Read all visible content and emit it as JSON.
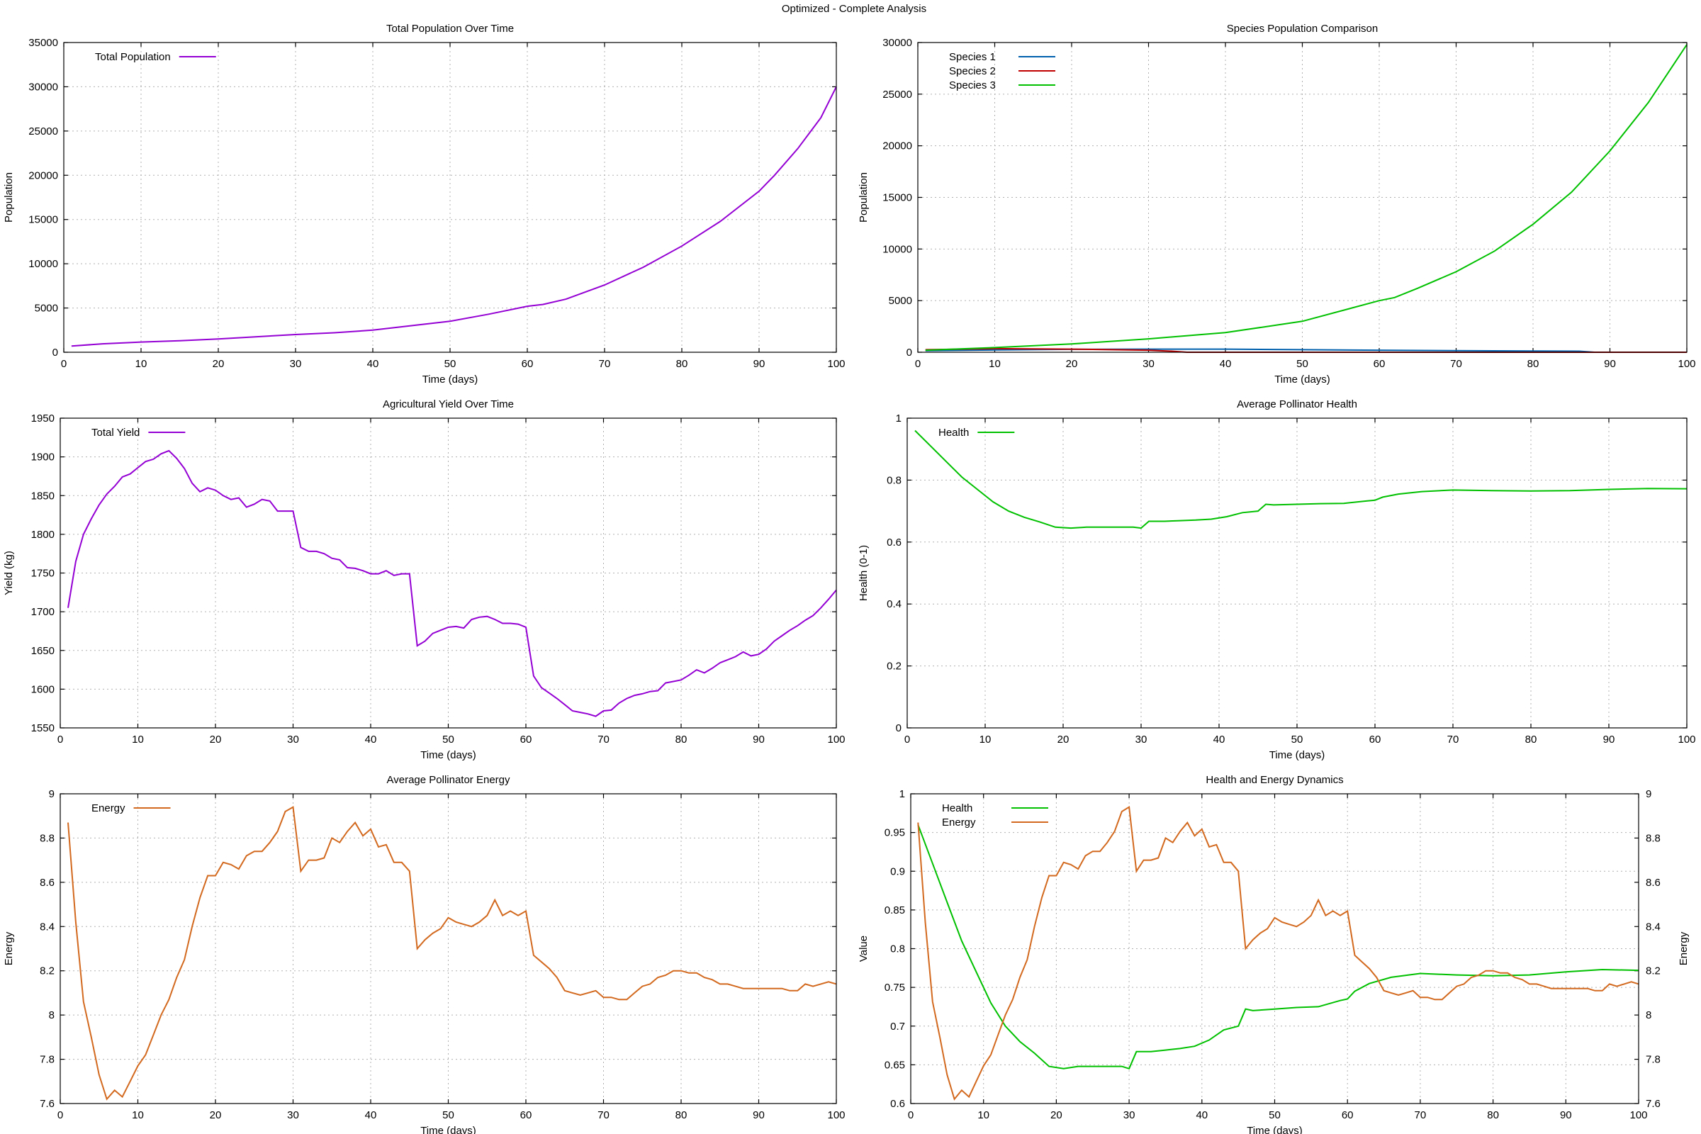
{
  "figure": {
    "suptitle": "Optimized - Complete Analysis"
  },
  "chart_data": [
    {
      "id": "p1",
      "type": "line",
      "title": "Total Population Over Time",
      "xlabel": "Time (days)",
      "ylabel": "Population",
      "xlim": [
        0,
        100
      ],
      "ylim": [
        0,
        35000
      ],
      "xticks": [
        0,
        10,
        20,
        30,
        40,
        50,
        60,
        70,
        80,
        90,
        100
      ],
      "yticks": [
        0,
        5000,
        10000,
        15000,
        20000,
        25000,
        30000,
        35000
      ],
      "grid": true,
      "legend_position": "top-left",
      "series": [
        {
          "name": "Total Population",
          "color": "#9400d3",
          "x": [
            1,
            5,
            10,
            15,
            20,
            25,
            30,
            35,
            40,
            45,
            50,
            55,
            60,
            62,
            65,
            70,
            75,
            80,
            85,
            90,
            92,
            95,
            98,
            100
          ],
          "y": [
            700,
            950,
            1150,
            1300,
            1500,
            1750,
            2000,
            2200,
            2500,
            3000,
            3500,
            4300,
            5200,
            5400,
            6000,
            7600,
            9600,
            12000,
            14800,
            18200,
            20000,
            23000,
            26500,
            30000
          ]
        }
      ]
    },
    {
      "id": "p2",
      "type": "line",
      "title": "Species Population Comparison",
      "xlabel": "Time (days)",
      "ylabel": "Population",
      "xlim": [
        0,
        100
      ],
      "ylim": [
        0,
        30000
      ],
      "xticks": [
        0,
        10,
        20,
        30,
        40,
        50,
        60,
        70,
        80,
        90,
        100
      ],
      "yticks": [
        0,
        5000,
        10000,
        15000,
        20000,
        25000,
        30000
      ],
      "grid": true,
      "legend_position": "top-left",
      "series": [
        {
          "name": "Species 1",
          "color": "#0060ad",
          "x": [
            1,
            10,
            20,
            30,
            40,
            50,
            60,
            70,
            80,
            86,
            88,
            100
          ],
          "y": [
            150,
            220,
            280,
            300,
            300,
            250,
            200,
            160,
            120,
            100,
            0,
            0
          ]
        },
        {
          "name": "Species 2",
          "color": "#c00000",
          "x": [
            1,
            10,
            20,
            30,
            33,
            35,
            100
          ],
          "y": [
            250,
            350,
            300,
            200,
            100,
            0,
            0
          ]
        },
        {
          "name": "Species 3",
          "color": "#00c000",
          "x": [
            1,
            10,
            20,
            30,
            40,
            50,
            60,
            62,
            65,
            70,
            75,
            80,
            85,
            90,
            95,
            100
          ],
          "y": [
            200,
            450,
            800,
            1300,
            1900,
            3000,
            5000,
            5300,
            6200,
            7800,
            9800,
            12400,
            15500,
            19500,
            24200,
            29800
          ]
        }
      ]
    },
    {
      "id": "p3",
      "type": "line",
      "title": "Agricultural Yield Over Time",
      "xlabel": "Time (days)",
      "ylabel": "Yield (kg)",
      "xlim": [
        0,
        100
      ],
      "ylim": [
        1550,
        1950
      ],
      "xticks": [
        0,
        10,
        20,
        30,
        40,
        50,
        60,
        70,
        80,
        90,
        100
      ],
      "yticks": [
        1550,
        1600,
        1650,
        1700,
        1750,
        1800,
        1850,
        1900,
        1950
      ],
      "grid": true,
      "legend_position": "top-left",
      "series": [
        {
          "name": "Total Yield",
          "color": "#9400d3",
          "x": [
            1,
            2,
            3,
            4,
            5,
            6,
            7,
            8,
            9,
            10,
            11,
            12,
            13,
            14,
            15,
            16,
            17,
            18,
            19,
            20,
            21,
            22,
            23,
            24,
            25,
            26,
            27,
            28,
            29,
            30,
            31,
            32,
            33,
            34,
            35,
            36,
            37,
            38,
            39,
            40,
            41,
            42,
            43,
            44,
            45,
            46,
            47,
            48,
            49,
            50,
            51,
            52,
            53,
            54,
            55,
            56,
            57,
            58,
            59,
            60,
            61,
            62,
            63,
            64,
            65,
            66,
            67,
            68,
            69,
            70,
            71,
            72,
            73,
            74,
            75,
            76,
            77,
            78,
            79,
            80,
            81,
            82,
            83,
            84,
            85,
            86,
            87,
            88,
            89,
            90,
            91,
            92,
            93,
            94,
            95,
            96,
            97,
            98,
            99,
            100
          ],
          "y": [
            1705,
            1765,
            1800,
            1820,
            1838,
            1852,
            1862,
            1874,
            1878,
            1886,
            1894,
            1897,
            1904,
            1908,
            1898,
            1885,
            1866,
            1855,
            1860,
            1857,
            1850,
            1845,
            1847,
            1835,
            1839,
            1845,
            1843,
            1830,
            1830,
            1830,
            1783,
            1778,
            1778,
            1775,
            1769,
            1767,
            1757,
            1756,
            1753,
            1749,
            1749,
            1753,
            1747,
            1749,
            1749,
            1656,
            1662,
            1672,
            1676,
            1680,
            1681,
            1679,
            1690,
            1693,
            1694,
            1690,
            1685,
            1685,
            1684,
            1680,
            1617,
            1602,
            1595,
            1588,
            1580,
            1572,
            1570,
            1568,
            1565,
            1572,
            1573,
            1582,
            1588,
            1592,
            1594,
            1597,
            1598,
            1608,
            1610,
            1612,
            1618,
            1625,
            1621,
            1627,
            1634,
            1638,
            1642,
            1648,
            1643,
            1645,
            1652,
            1662,
            1669,
            1676,
            1682,
            1689,
            1695,
            1705,
            1716,
            1728
          ]
        }
      ]
    },
    {
      "id": "p4",
      "type": "line",
      "title": "Average Pollinator Health",
      "xlabel": "Time (days)",
      "ylabel": "Health (0-1)",
      "xlim": [
        0,
        100
      ],
      "ylim": [
        0,
        1
      ],
      "xticks": [
        0,
        10,
        20,
        30,
        40,
        50,
        60,
        70,
        80,
        90,
        100
      ],
      "yticks": [
        0,
        0.2,
        0.4,
        0.6,
        0.8,
        1
      ],
      "grid": true,
      "legend_position": "top-left",
      "series": [
        {
          "name": "Health",
          "color": "#00c000",
          "x": [
            1,
            3,
            5,
            7,
            9,
            11,
            13,
            15,
            17,
            19,
            21,
            23,
            25,
            27,
            29,
            30,
            31,
            33,
            35,
            37,
            39,
            41,
            43,
            45,
            46,
            47,
            50,
            53,
            56,
            59,
            60,
            61,
            63,
            66,
            70,
            75,
            80,
            85,
            90,
            95,
            100
          ],
          "y": [
            0.96,
            0.91,
            0.86,
            0.81,
            0.77,
            0.73,
            0.7,
            0.68,
            0.665,
            0.648,
            0.645,
            0.648,
            0.648,
            0.648,
            0.648,
            0.645,
            0.667,
            0.667,
            0.669,
            0.671,
            0.674,
            0.682,
            0.695,
            0.7,
            0.722,
            0.72,
            0.722,
            0.724,
            0.725,
            0.733,
            0.735,
            0.745,
            0.755,
            0.763,
            0.768,
            0.766,
            0.765,
            0.766,
            0.77,
            0.773,
            0.772
          ]
        }
      ]
    },
    {
      "id": "p5",
      "type": "line",
      "title": "Average Pollinator Energy",
      "xlabel": "Time (days)",
      "ylabel": "Energy",
      "xlim": [
        0,
        100
      ],
      "ylim": [
        7.6,
        9
      ],
      "xticks": [
        0,
        10,
        20,
        30,
        40,
        50,
        60,
        70,
        80,
        90,
        100
      ],
      "yticks": [
        7.6,
        7.8,
        8,
        8.2,
        8.4,
        8.6,
        8.8,
        9
      ],
      "grid": true,
      "legend_position": "top-left",
      "series": [
        {
          "name": "Energy",
          "color": "#d2691e",
          "x": [
            1,
            2,
            3,
            4,
            5,
            6,
            7,
            8,
            9,
            10,
            11,
            12,
            13,
            14,
            15,
            16,
            17,
            18,
            19,
            20,
            21,
            22,
            23,
            24,
            25,
            26,
            27,
            28,
            29,
            30,
            31,
            32,
            33,
            34,
            35,
            36,
            37,
            38,
            39,
            40,
            41,
            42,
            43,
            44,
            45,
            46,
            47,
            48,
            49,
            50,
            51,
            52,
            53,
            54,
            55,
            56,
            57,
            58,
            59,
            60,
            61,
            62,
            63,
            64,
            65,
            66,
            67,
            68,
            69,
            70,
            71,
            72,
            73,
            74,
            75,
            76,
            77,
            78,
            79,
            80,
            81,
            82,
            83,
            84,
            85,
            86,
            87,
            88,
            89,
            90,
            91,
            92,
            93,
            94,
            95,
            96,
            97,
            98,
            99,
            100
          ],
          "y": [
            8.87,
            8.42,
            8.06,
            7.9,
            7.73,
            7.62,
            7.66,
            7.63,
            7.7,
            7.77,
            7.82,
            7.91,
            8.0,
            8.07,
            8.17,
            8.25,
            8.4,
            8.53,
            8.63,
            8.63,
            8.69,
            8.68,
            8.66,
            8.72,
            8.74,
            8.74,
            8.78,
            8.83,
            8.92,
            8.94,
            8.65,
            8.7,
            8.7,
            8.71,
            8.8,
            8.78,
            8.83,
            8.87,
            8.81,
            8.84,
            8.76,
            8.77,
            8.69,
            8.69,
            8.65,
            8.3,
            8.34,
            8.37,
            8.39,
            8.44,
            8.42,
            8.41,
            8.4,
            8.42,
            8.45,
            8.52,
            8.45,
            8.47,
            8.45,
            8.47,
            8.27,
            8.24,
            8.21,
            8.17,
            8.11,
            8.1,
            8.09,
            8.1,
            8.11,
            8.08,
            8.08,
            8.07,
            8.07,
            8.1,
            8.13,
            8.14,
            8.17,
            8.18,
            8.2,
            8.2,
            8.19,
            8.19,
            8.17,
            8.16,
            8.14,
            8.14,
            8.13,
            8.12,
            8.12,
            8.12,
            8.12,
            8.12,
            8.12,
            8.11,
            8.11,
            8.14,
            8.13,
            8.14,
            8.15,
            8.14
          ]
        }
      ]
    },
    {
      "id": "p6",
      "type": "line",
      "title": "Health and Energy Dynamics",
      "xlabel": "Time (days)",
      "ylabel": "Value",
      "y2label": "Energy",
      "xlim": [
        0,
        100
      ],
      "ylim": [
        0.6,
        1
      ],
      "y2lim": [
        7.6,
        9
      ],
      "xticks": [
        0,
        10,
        20,
        30,
        40,
        50,
        60,
        70,
        80,
        90,
        100
      ],
      "yticks": [
        0.6,
        0.65,
        0.7,
        0.75,
        0.8,
        0.85,
        0.9,
        0.95,
        1
      ],
      "y2ticks": [
        7.6,
        7.8,
        8,
        8.2,
        8.4,
        8.6,
        8.8,
        9
      ],
      "grid": true,
      "legend_position": "top-left",
      "series": [
        {
          "name": "Health",
          "color": "#00c000",
          "axis": "y",
          "x": [
            1,
            3,
            5,
            7,
            9,
            11,
            13,
            15,
            17,
            19,
            21,
            23,
            25,
            27,
            29,
            30,
            31,
            33,
            35,
            37,
            39,
            41,
            43,
            45,
            46,
            47,
            50,
            53,
            56,
            59,
            60,
            61,
            63,
            66,
            70,
            75,
            80,
            85,
            90,
            95,
            100
          ],
          "y": [
            0.96,
            0.91,
            0.86,
            0.81,
            0.77,
            0.73,
            0.7,
            0.68,
            0.665,
            0.648,
            0.645,
            0.648,
            0.648,
            0.648,
            0.648,
            0.645,
            0.667,
            0.667,
            0.669,
            0.671,
            0.674,
            0.682,
            0.695,
            0.7,
            0.722,
            0.72,
            0.722,
            0.724,
            0.725,
            0.733,
            0.735,
            0.745,
            0.755,
            0.763,
            0.768,
            0.766,
            0.765,
            0.766,
            0.77,
            0.773,
            0.772
          ]
        },
        {
          "name": "Energy",
          "color": "#d2691e",
          "axis": "y2",
          "ref": "p5"
        }
      ]
    }
  ]
}
